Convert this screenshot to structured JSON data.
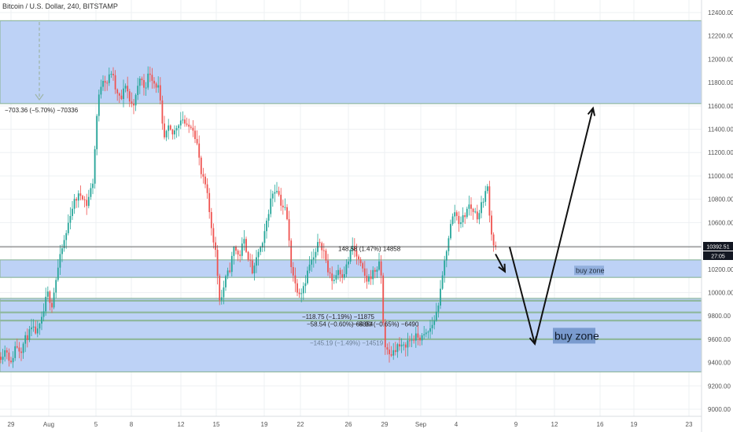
{
  "title": "Bitcoin / U.S. Dollar, 240, BITSTAMP",
  "colors": {
    "up": "#26a69a",
    "down": "#ef5350",
    "zone_fill": "#b9d0f5",
    "zone_border": "#90b8a0",
    "grid": "#eef0f3",
    "arrow": "#111111",
    "buy_label_bg": "#6f92c8"
  },
  "current_price_label": "10392.51",
  "countdown_label": "27:05",
  "chart_data": {
    "type": "candlestick",
    "symbol": "Bitcoin / U.S. Dollar",
    "interval": "240",
    "exchange": "BITSTAMP",
    "y_axis": {
      "min": 9000,
      "max": 12400,
      "ticks": [
        9000,
        9200,
        9400,
        9600,
        9800,
        10000,
        10200,
        10400,
        10600,
        10800,
        11000,
        11200,
        11400,
        11600,
        11800,
        12000,
        12200,
        12400
      ],
      "position": "right"
    },
    "x_axis": {
      "ticks": [
        "29",
        "Aug",
        "5",
        "8",
        "12",
        "15",
        "19",
        "22",
        "26",
        "29",
        "Sep",
        "4",
        "9",
        "12",
        "16",
        "19",
        "23"
      ]
    },
    "grid": true,
    "current_price": 10392.51,
    "close_path": [
      [
        0,
        9450
      ],
      [
        8,
        9520
      ],
      [
        14,
        9380
      ],
      [
        20,
        9560
      ],
      [
        26,
        9500
      ],
      [
        32,
        9600
      ],
      [
        40,
        9680
      ],
      [
        48,
        9660
      ],
      [
        54,
        9780
      ],
      [
        60,
        10000
      ],
      [
        66,
        9900
      ],
      [
        72,
        10150
      ],
      [
        78,
        10350
      ],
      [
        84,
        10500
      ],
      [
        90,
        10700
      ],
      [
        96,
        10800
      ],
      [
        104,
        10850
      ],
      [
        110,
        10750
      ],
      [
        118,
        10950
      ],
      [
        124,
        11600
      ],
      [
        130,
        11850
      ],
      [
        136,
        11800
      ],
      [
        142,
        11900
      ],
      [
        148,
        11700
      ],
      [
        154,
        11650
      ],
      [
        160,
        11800
      ],
      [
        166,
        11600
      ],
      [
        172,
        11650
      ],
      [
        178,
        11850
      ],
      [
        184,
        11750
      ],
      [
        190,
        11900
      ],
      [
        196,
        11800
      ],
      [
        202,
        11750
      ],
      [
        208,
        11300
      ],
      [
        214,
        11400
      ],
      [
        220,
        11350
      ],
      [
        226,
        11450
      ],
      [
        232,
        11500
      ],
      [
        238,
        11400
      ],
      [
        244,
        11450
      ],
      [
        250,
        11300
      ],
      [
        256,
        11000
      ],
      [
        262,
        10900
      ],
      [
        268,
        10600
      ],
      [
        274,
        10350
      ],
      [
        280,
        9900
      ],
      [
        286,
        10100
      ],
      [
        292,
        10200
      ],
      [
        298,
        10400
      ],
      [
        304,
        10300
      ],
      [
        310,
        10450
      ],
      [
        316,
        10300
      ],
      [
        322,
        10150
      ],
      [
        328,
        10350
      ],
      [
        334,
        10400
      ],
      [
        340,
        10650
      ],
      [
        346,
        10850
      ],
      [
        352,
        10900
      ],
      [
        358,
        10750
      ],
      [
        364,
        10700
      ],
      [
        370,
        10250
      ],
      [
        376,
        10050
      ],
      [
        382,
        10000
      ],
      [
        388,
        10100
      ],
      [
        394,
        10250
      ],
      [
        400,
        10300
      ],
      [
        406,
        10450
      ],
      [
        412,
        10350
      ],
      [
        418,
        10150
      ],
      [
        424,
        10100
      ],
      [
        430,
        10200
      ],
      [
        436,
        10150
      ],
      [
        442,
        10250
      ],
      [
        448,
        10400
      ],
      [
        454,
        10300
      ],
      [
        460,
        10200
      ],
      [
        466,
        10100
      ],
      [
        472,
        10150
      ],
      [
        478,
        10200
      ],
      [
        484,
        10250
      ],
      [
        488,
        9600
      ],
      [
        494,
        9450
      ],
      [
        500,
        9500
      ],
      [
        506,
        9550
      ],
      [
        512,
        9520
      ],
      [
        518,
        9580
      ],
      [
        524,
        9600
      ],
      [
        530,
        9620
      ],
      [
        536,
        9610
      ],
      [
        542,
        9640
      ],
      [
        548,
        9700
      ],
      [
        554,
        9800
      ],
      [
        560,
        10000
      ],
      [
        566,
        10300
      ],
      [
        572,
        10550
      ],
      [
        578,
        10700
      ],
      [
        584,
        10600
      ],
      [
        590,
        10650
      ],
      [
        596,
        10750
      ],
      [
        602,
        10700
      ],
      [
        608,
        10650
      ],
      [
        614,
        10800
      ],
      [
        620,
        10900
      ],
      [
        624,
        10550
      ],
      [
        628,
        10400
      ],
      [
        632,
        10390
      ]
    ],
    "zones": [
      {
        "low": 11620,
        "high": 12330,
        "style": "fill"
      },
      {
        "low": 10130,
        "high": 10280,
        "style": "fill"
      },
      {
        "low": 9320,
        "high": 9950,
        "style": "fill"
      },
      {
        "level": 9930,
        "style": "line"
      },
      {
        "level": 9830,
        "style": "line"
      },
      {
        "level": 9760,
        "style": "line"
      },
      {
        "level": 9600,
        "style": "line"
      }
    ],
    "projection_path": [
      [
        648,
        10390
      ],
      [
        680,
        9560
      ],
      [
        754,
        11580
      ]
    ],
    "annotations": [
      {
        "text": "−703.36 (−5.70%) −70336",
        "x": 6,
        "price": 11545,
        "tone": "dark"
      },
      {
        "text": "148.58 (1.47%) 14858",
        "x": 430,
        "price": 10355,
        "tone": "dark"
      },
      {
        "text": "−118.75 (−1.19%) −11875",
        "x": 384,
        "price": 9775,
        "tone": "dark"
      },
      {
        "text": "−58.54 (−0.60%) −5854",
        "x": 390,
        "price": 9710,
        "tone": "dark"
      },
      {
        "text": "−64.90 (−0.65%) −6490",
        "x": 448,
        "price": 9710,
        "tone": "dark"
      },
      {
        "text": "−145.19 (−1.49%) −14519",
        "x": 394,
        "price": 9550,
        "tone": "grey"
      }
    ],
    "buy_zone_labels": [
      {
        "text": "buy zone",
        "x": 730,
        "price": 10190,
        "size": "small"
      },
      {
        "text": "buy zone",
        "x": 703,
        "price": 9630,
        "size": "large"
      }
    ]
  }
}
